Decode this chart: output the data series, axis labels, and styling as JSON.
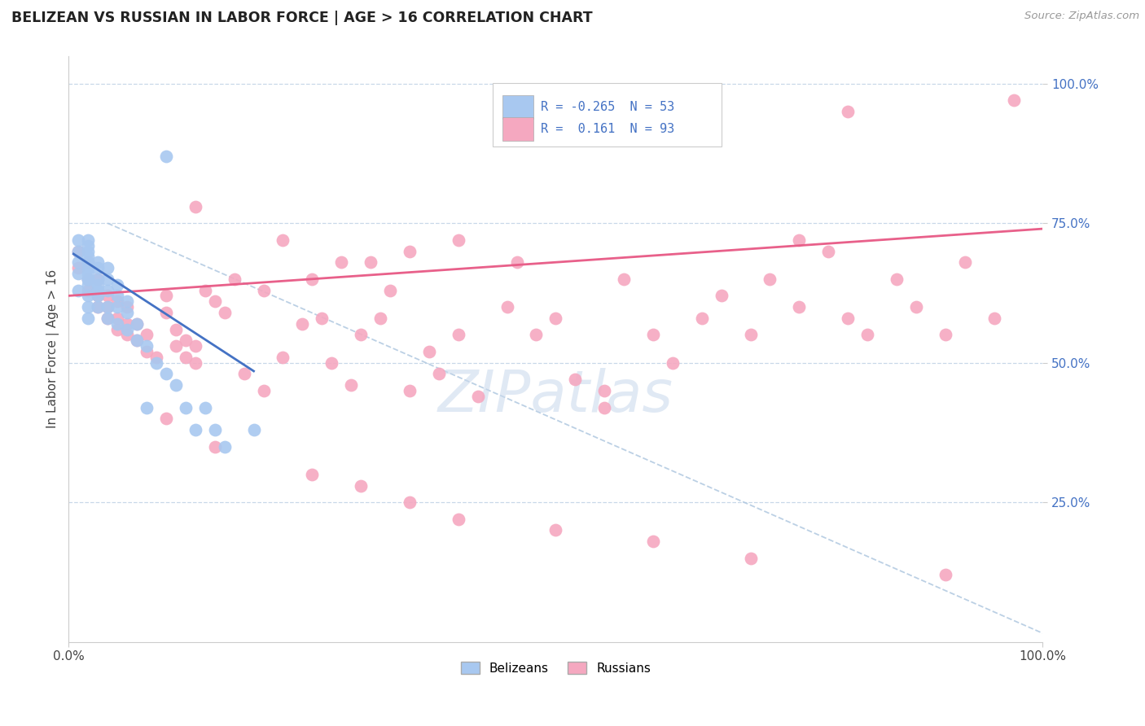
{
  "title": "BELIZEAN VS RUSSIAN IN LABOR FORCE | AGE > 16 CORRELATION CHART",
  "ylabel": "In Labor Force | Age > 16",
  "source_text": "Source: ZipAtlas.com",
  "belizean_R": -0.265,
  "belizean_N": 53,
  "russian_R": 0.161,
  "russian_N": 93,
  "belizean_color": "#A8C8F0",
  "russian_color": "#F5A8C0",
  "belizean_line_color": "#4472C4",
  "russian_line_color": "#E8608A",
  "diag_line_color": "#B0C8E0",
  "background_color": "#FFFFFF",
  "grid_color": "#C8D8E8",
  "xlim": [
    0,
    1
  ],
  "ylim": [
    0,
    1
  ],
  "xtick_labels": [
    "0.0%",
    "100.0%"
  ],
  "ytick_labels": [
    "25.0%",
    "50.0%",
    "75.0%",
    "100.0%"
  ],
  "ytick_positions": [
    0.25,
    0.5,
    0.75,
    1.0
  ],
  "bel_x": [
    0.01,
    0.01,
    0.01,
    0.01,
    0.01,
    0.02,
    0.02,
    0.02,
    0.02,
    0.02,
    0.02,
    0.02,
    0.02,
    0.02,
    0.02,
    0.02,
    0.02,
    0.02,
    0.02,
    0.02,
    0.03,
    0.03,
    0.03,
    0.03,
    0.03,
    0.03,
    0.03,
    0.04,
    0.04,
    0.04,
    0.04,
    0.04,
    0.05,
    0.05,
    0.05,
    0.05,
    0.06,
    0.06,
    0.06,
    0.07,
    0.07,
    0.08,
    0.08,
    0.09,
    0.1,
    0.1,
    0.11,
    0.12,
    0.13,
    0.14,
    0.15,
    0.16,
    0.19
  ],
  "bel_y": [
    0.63,
    0.66,
    0.68,
    0.7,
    0.72,
    0.58,
    0.6,
    0.62,
    0.64,
    0.65,
    0.65,
    0.66,
    0.67,
    0.67,
    0.68,
    0.68,
    0.69,
    0.7,
    0.71,
    0.72,
    0.6,
    0.62,
    0.63,
    0.64,
    0.65,
    0.67,
    0.68,
    0.58,
    0.6,
    0.63,
    0.65,
    0.67,
    0.57,
    0.6,
    0.62,
    0.64,
    0.56,
    0.59,
    0.61,
    0.54,
    0.57,
    0.42,
    0.53,
    0.5,
    0.48,
    0.87,
    0.46,
    0.42,
    0.38,
    0.42,
    0.38,
    0.35,
    0.38
  ],
  "rus_x": [
    0.01,
    0.01,
    0.02,
    0.02,
    0.02,
    0.03,
    0.03,
    0.03,
    0.04,
    0.04,
    0.04,
    0.05,
    0.05,
    0.05,
    0.06,
    0.06,
    0.06,
    0.07,
    0.07,
    0.08,
    0.08,
    0.09,
    0.1,
    0.1,
    0.11,
    0.11,
    0.12,
    0.12,
    0.13,
    0.13,
    0.14,
    0.15,
    0.16,
    0.17,
    0.18,
    0.2,
    0.22,
    0.22,
    0.24,
    0.25,
    0.26,
    0.27,
    0.28,
    0.29,
    0.3,
    0.31,
    0.32,
    0.33,
    0.35,
    0.35,
    0.37,
    0.38,
    0.4,
    0.4,
    0.42,
    0.45,
    0.46,
    0.48,
    0.5,
    0.52,
    0.55,
    0.57,
    0.6,
    0.62,
    0.65,
    0.67,
    0.7,
    0.72,
    0.75,
    0.78,
    0.8,
    0.82,
    0.85,
    0.87,
    0.9,
    0.92,
    0.95,
    0.1,
    0.15,
    0.2,
    0.25,
    0.3,
    0.35,
    0.4,
    0.5,
    0.6,
    0.7,
    0.8,
    0.9,
    0.13,
    0.55,
    0.75,
    0.97
  ],
  "rus_y": [
    0.67,
    0.7,
    0.63,
    0.65,
    0.68,
    0.6,
    0.62,
    0.65,
    0.58,
    0.6,
    0.62,
    0.56,
    0.58,
    0.61,
    0.55,
    0.57,
    0.6,
    0.54,
    0.57,
    0.52,
    0.55,
    0.51,
    0.59,
    0.62,
    0.53,
    0.56,
    0.51,
    0.54,
    0.5,
    0.53,
    0.63,
    0.61,
    0.59,
    0.65,
    0.48,
    0.63,
    0.51,
    0.72,
    0.57,
    0.65,
    0.58,
    0.5,
    0.68,
    0.46,
    0.55,
    0.68,
    0.58,
    0.63,
    0.45,
    0.7,
    0.52,
    0.48,
    0.55,
    0.72,
    0.44,
    0.6,
    0.68,
    0.55,
    0.58,
    0.47,
    0.42,
    0.65,
    0.55,
    0.5,
    0.58,
    0.62,
    0.55,
    0.65,
    0.6,
    0.7,
    0.58,
    0.55,
    0.65,
    0.6,
    0.55,
    0.68,
    0.58,
    0.4,
    0.35,
    0.45,
    0.3,
    0.28,
    0.25,
    0.22,
    0.2,
    0.18,
    0.15,
    0.95,
    0.12,
    0.78,
    0.45,
    0.72,
    0.97
  ]
}
